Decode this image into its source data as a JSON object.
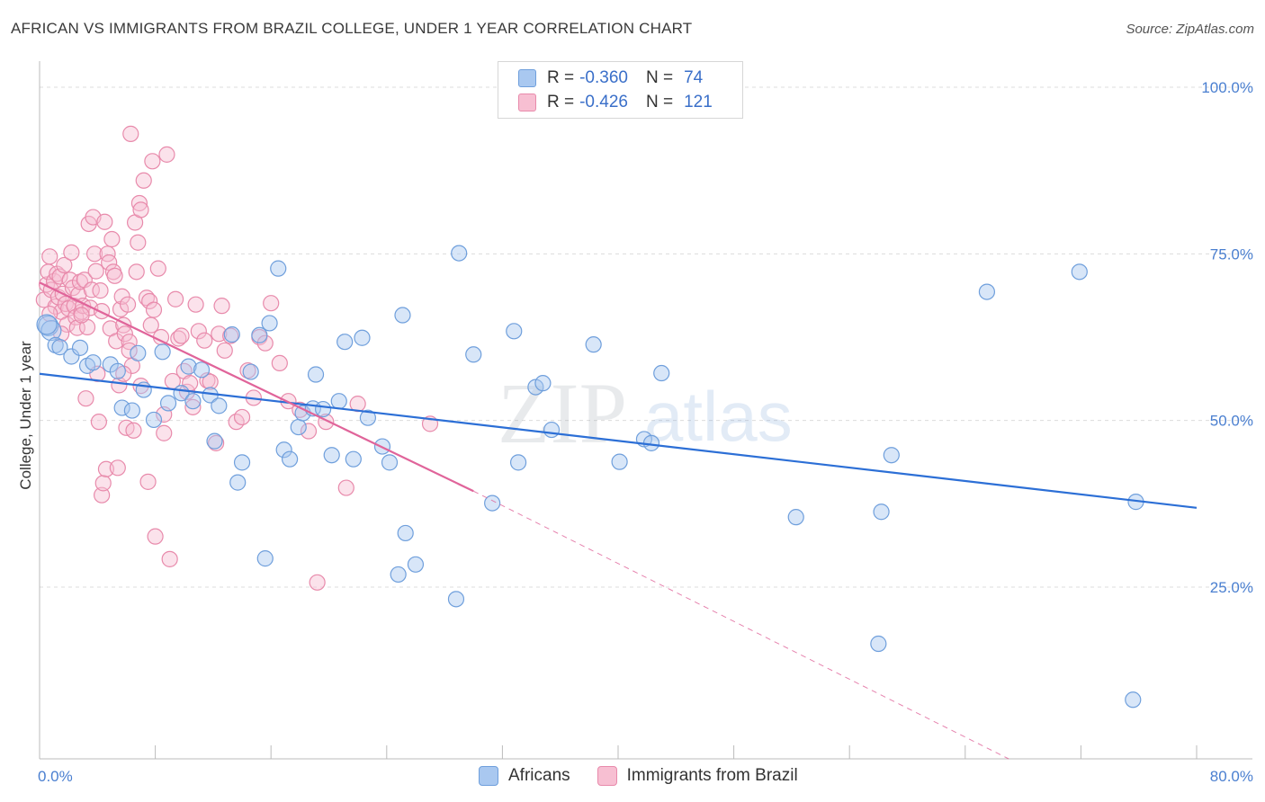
{
  "header": {
    "title": "AFRICAN VS IMMIGRANTS FROM BRAZIL COLLEGE, UNDER 1 YEAR CORRELATION CHART",
    "source": "Source: ZipAtlas.com"
  },
  "watermark": {
    "zip": "ZIP",
    "atlas": "atlas"
  },
  "legend": {
    "rows": [
      {
        "r_label": "R =",
        "r_value": "-0.360",
        "n_label": "N =",
        "n_value": "74",
        "color": "#a9c8f0",
        "border": "#6f9fdc"
      },
      {
        "r_label": "R =",
        "r_value": "-0.426",
        "n_label": "N =",
        "n_value": "121",
        "color": "#f7bfd2",
        "border": "#e88aab"
      }
    ]
  },
  "bottom_legend": {
    "africans": "Africans",
    "brazil": "Immigrants from Brazil"
  },
  "colors": {
    "africans_fill": "#a9c8f0",
    "africans_stroke": "#6f9fdc",
    "africans_line": "#2c6fd6",
    "brazil_fill": "#f7bfd2",
    "brazil_stroke": "#e88aab",
    "brazil_line": "#e0649a",
    "tick_label": "#4a7fd0",
    "grid": "#dcdcdc"
  },
  "chart_data": {
    "type": "scatter",
    "title": "AFRICAN VS IMMIGRANTS FROM BRAZIL COLLEGE, UNDER 1 YEAR CORRELATION CHART",
    "xlabel": "",
    "ylabel": "College, Under 1 year",
    "xlim": [
      0,
      80
    ],
    "ylim": [
      0,
      105
    ],
    "x_tick_labels": [
      "0.0%",
      "80.0%"
    ],
    "y_ticks": [
      25,
      50,
      75,
      100
    ],
    "y_tick_labels": [
      "25.0%",
      "50.0%",
      "75.0%",
      "100.0%"
    ],
    "grid": true,
    "series": [
      {
        "name": "Africans",
        "trend": {
          "x": [
            0,
            80
          ],
          "y": [
            57.0,
            36.9
          ]
        },
        "points": [
          [
            0.6,
            64.2
          ],
          [
            0.8,
            63.5
          ],
          [
            1.1,
            61.3
          ],
          [
            1.4,
            61.0
          ],
          [
            2.2,
            59.6
          ],
          [
            2.8,
            60.9
          ],
          [
            3.3,
            58.2
          ],
          [
            3.7,
            58.7
          ],
          [
            4.9,
            58.4
          ],
          [
            5.4,
            57.4
          ],
          [
            5.7,
            51.9
          ],
          [
            6.4,
            51.5
          ],
          [
            6.8,
            60.1
          ],
          [
            7.2,
            54.6
          ],
          [
            7.9,
            50.1
          ],
          [
            8.5,
            60.3
          ],
          [
            8.9,
            52.6
          ],
          [
            9.8,
            54.1
          ],
          [
            10.3,
            58.1
          ],
          [
            10.6,
            52.9
          ],
          [
            11.2,
            57.6
          ],
          [
            11.8,
            53.8
          ],
          [
            12.1,
            46.9
          ],
          [
            12.4,
            52.2
          ],
          [
            13.3,
            62.9
          ],
          [
            13.7,
            40.7
          ],
          [
            14.0,
            43.7
          ],
          [
            14.6,
            57.3
          ],
          [
            15.2,
            62.8
          ],
          [
            15.6,
            29.3
          ],
          [
            15.9,
            64.6
          ],
          [
            16.5,
            72.8
          ],
          [
            16.9,
            45.6
          ],
          [
            17.3,
            44.2
          ],
          [
            17.9,
            49.0
          ],
          [
            18.2,
            51.1
          ],
          [
            18.9,
            51.8
          ],
          [
            19.1,
            56.9
          ],
          [
            19.6,
            51.7
          ],
          [
            20.2,
            44.8
          ],
          [
            20.7,
            52.9
          ],
          [
            21.1,
            61.8
          ],
          [
            21.7,
            44.2
          ],
          [
            22.3,
            62.4
          ],
          [
            22.7,
            50.4
          ],
          [
            23.7,
            46.1
          ],
          [
            24.2,
            43.7
          ],
          [
            24.8,
            26.9
          ],
          [
            25.1,
            65.8
          ],
          [
            25.3,
            33.1
          ],
          [
            26.0,
            28.4
          ],
          [
            28.8,
            23.2
          ],
          [
            29.0,
            75.1
          ],
          [
            30.0,
            59.9
          ],
          [
            31.3,
            37.6
          ],
          [
            32.8,
            63.4
          ],
          [
            33.1,
            43.7
          ],
          [
            34.3,
            55.0
          ],
          [
            34.8,
            55.6
          ],
          [
            35.4,
            48.6
          ],
          [
            38.3,
            61.4
          ],
          [
            40.1,
            43.8
          ],
          [
            41.8,
            47.2
          ],
          [
            42.3,
            46.6
          ],
          [
            43.0,
            57.1
          ],
          [
            52.3,
            35.5
          ],
          [
            58.0,
            16.5
          ],
          [
            58.2,
            36.3
          ],
          [
            58.9,
            44.8
          ],
          [
            65.5,
            69.3
          ],
          [
            71.9,
            72.3
          ],
          [
            75.6,
            8.1
          ],
          [
            75.8,
            37.8
          ],
          [
            0.5,
            64.4
          ]
        ]
      },
      {
        "name": "Immigrants from Brazil",
        "trend": {
          "x": [
            0,
            30
          ],
          "y": [
            70.7,
            39.4
          ],
          "extend_dash": {
            "x": [
              30,
              80
            ],
            "y": [
              39.4,
              -12.8
            ]
          }
        },
        "points": [
          [
            0.3,
            68.1
          ],
          [
            0.5,
            70.4
          ],
          [
            0.6,
            72.3
          ],
          [
            0.7,
            74.6
          ],
          [
            0.8,
            69.6
          ],
          [
            1.0,
            70.9
          ],
          [
            1.1,
            67.1
          ],
          [
            1.2,
            72.0
          ],
          [
            1.3,
            68.5
          ],
          [
            1.4,
            71.6
          ],
          [
            1.5,
            66.3
          ],
          [
            1.6,
            69.0
          ],
          [
            1.7,
            73.3
          ],
          [
            1.8,
            67.5
          ],
          [
            1.9,
            64.4
          ],
          [
            2.0,
            66.8
          ],
          [
            2.1,
            71.1
          ],
          [
            2.2,
            75.2
          ],
          [
            2.3,
            69.9
          ],
          [
            2.4,
            67.2
          ],
          [
            2.5,
            65.5
          ],
          [
            2.6,
            63.9
          ],
          [
            2.7,
            68.9
          ],
          [
            2.8,
            70.8
          ],
          [
            2.9,
            66.3
          ],
          [
            3.0,
            67.2
          ],
          [
            3.1,
            71.1
          ],
          [
            3.2,
            53.3
          ],
          [
            3.3,
            64.0
          ],
          [
            3.4,
            79.5
          ],
          [
            3.5,
            66.9
          ],
          [
            3.6,
            69.6
          ],
          [
            3.7,
            80.5
          ],
          [
            3.8,
            75.0
          ],
          [
            3.9,
            72.4
          ],
          [
            4.0,
            57.0
          ],
          [
            4.1,
            49.8
          ],
          [
            4.2,
            69.5
          ],
          [
            4.3,
            38.8
          ],
          [
            4.4,
            40.6
          ],
          [
            4.5,
            79.8
          ],
          [
            4.6,
            42.7
          ],
          [
            4.7,
            75.0
          ],
          [
            4.8,
            73.7
          ],
          [
            4.9,
            63.8
          ],
          [
            5.0,
            77.2
          ],
          [
            5.1,
            72.3
          ],
          [
            5.2,
            71.7
          ],
          [
            5.3,
            61.9
          ],
          [
            5.4,
            42.9
          ],
          [
            5.5,
            55.3
          ],
          [
            5.6,
            66.7
          ],
          [
            5.7,
            68.6
          ],
          [
            5.8,
            64.3
          ],
          [
            5.9,
            63.0
          ],
          [
            6.0,
            48.9
          ],
          [
            6.1,
            67.4
          ],
          [
            6.2,
            61.8
          ],
          [
            6.3,
            93.0
          ],
          [
            6.4,
            58.2
          ],
          [
            6.5,
            48.5
          ],
          [
            6.6,
            79.7
          ],
          [
            6.7,
            72.3
          ],
          [
            6.8,
            76.7
          ],
          [
            6.9,
            82.6
          ],
          [
            7.0,
            81.6
          ],
          [
            7.2,
            86.0
          ],
          [
            7.4,
            68.4
          ],
          [
            7.5,
            40.8
          ],
          [
            7.6,
            67.9
          ],
          [
            7.7,
            64.3
          ],
          [
            7.8,
            88.9
          ],
          [
            7.9,
            66.6
          ],
          [
            8.0,
            32.6
          ],
          [
            8.2,
            72.8
          ],
          [
            8.4,
            62.5
          ],
          [
            8.6,
            48.1
          ],
          [
            8.8,
            89.9
          ],
          [
            9.0,
            29.2
          ],
          [
            9.2,
            55.9
          ],
          [
            9.4,
            68.2
          ],
          [
            9.6,
            62.3
          ],
          [
            9.8,
            62.7
          ],
          [
            10.0,
            57.4
          ],
          [
            10.2,
            54.3
          ],
          [
            10.4,
            55.6
          ],
          [
            10.6,
            52.0
          ],
          [
            10.8,
            67.4
          ],
          [
            11.0,
            63.4
          ],
          [
            11.4,
            62.0
          ],
          [
            11.6,
            56.0
          ],
          [
            11.8,
            55.8
          ],
          [
            12.2,
            46.6
          ],
          [
            12.4,
            63.0
          ],
          [
            12.6,
            67.2
          ],
          [
            12.8,
            60.5
          ],
          [
            13.2,
            62.7
          ],
          [
            13.6,
            49.8
          ],
          [
            14.0,
            50.5
          ],
          [
            14.4,
            57.5
          ],
          [
            14.8,
            53.4
          ],
          [
            15.2,
            62.5
          ],
          [
            15.6,
            61.6
          ],
          [
            16.0,
            67.6
          ],
          [
            16.6,
            58.6
          ],
          [
            17.2,
            52.9
          ],
          [
            18.0,
            51.6
          ],
          [
            18.6,
            48.4
          ],
          [
            19.2,
            25.7
          ],
          [
            19.8,
            49.8
          ],
          [
            21.2,
            39.9
          ],
          [
            22.0,
            52.5
          ],
          [
            27.0,
            49.5
          ],
          [
            6.2,
            60.5
          ],
          [
            2.9,
            65.8
          ],
          [
            1.5,
            63.0
          ],
          [
            4.3,
            66.4
          ],
          [
            5.8,
            57.0
          ],
          [
            7.0,
            55.2
          ],
          [
            8.6,
            50.9
          ],
          [
            0.7,
            66.0
          ]
        ]
      }
    ]
  }
}
